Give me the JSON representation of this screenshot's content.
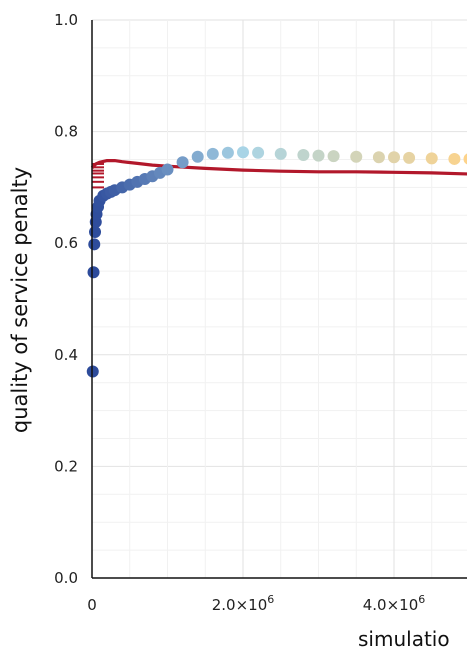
{
  "chart_data": {
    "type": "scatter",
    "title": "",
    "ylabel": "quality of service penalty",
    "xlabel": "simulatio",
    "ylim": [
      0,
      1.0
    ],
    "xlim": [
      0,
      5000000
    ],
    "y_ticks": [
      "0.0",
      "0.2",
      "0.4",
      "0.6",
      "0.8",
      "1.0"
    ],
    "x_ticks": [
      {
        "value": 0,
        "label": "0",
        "sup": ""
      },
      {
        "value": 2000000,
        "label": "2.0×10",
        "sup": "6"
      },
      {
        "value": 4000000,
        "label": "4.0×10",
        "sup": "6"
      }
    ],
    "grid": true,
    "colors": {
      "red_series": "#b2182b",
      "gradient_start": "#2c4a9a",
      "gradient_mid": "#a8d4e6",
      "gradient_end": "#fdd38a"
    },
    "series": [
      {
        "style": "line",
        "color": "#b2182b",
        "x": [
          0,
          50000,
          100000,
          200000,
          300000,
          400000,
          600000,
          800000,
          1000000,
          1500000,
          2000000,
          2500000,
          3000000,
          3500000,
          4000000,
          4500000,
          5000000
        ],
        "y": [
          0.735,
          0.742,
          0.745,
          0.748,
          0.748,
          0.746,
          0.743,
          0.74,
          0.738,
          0.734,
          0.731,
          0.729,
          0.728,
          0.728,
          0.727,
          0.726,
          0.724
        ],
        "stub_y": [
          0.7,
          0.71,
          0.718,
          0.725,
          0.73,
          0.736,
          0.742
        ]
      },
      {
        "style": "markers-gradient",
        "x": [
          10000,
          20000,
          30000,
          40000,
          50000,
          60000,
          80000,
          100000,
          150000,
          200000,
          250000,
          300000,
          400000,
          500000,
          600000,
          700000,
          800000,
          900000,
          1000000,
          1200000,
          1400000,
          1600000,
          1800000,
          2000000,
          2200000,
          2500000,
          2800000,
          3000000,
          3200000,
          3500000,
          3800000,
          4000000,
          4200000,
          4500000,
          4800000,
          5000000
        ],
        "y": [
          0.37,
          0.548,
          0.598,
          0.62,
          0.638,
          0.652,
          0.665,
          0.676,
          0.685,
          0.689,
          0.692,
          0.695,
          0.7,
          0.705,
          0.71,
          0.715,
          0.72,
          0.726,
          0.732,
          0.745,
          0.755,
          0.76,
          0.762,
          0.763,
          0.762,
          0.76,
          0.758,
          0.757,
          0.756,
          0.755,
          0.754,
          0.754,
          0.753,
          0.752,
          0.751,
          0.751
        ]
      }
    ]
  }
}
